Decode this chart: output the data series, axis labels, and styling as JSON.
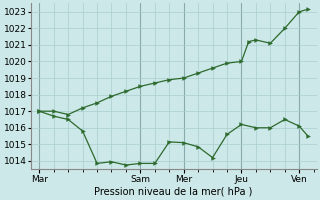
{
  "xlabel": "Pression niveau de la mer( hPa )",
  "ylim": [
    1013.5,
    1023.5
  ],
  "yticks": [
    1014,
    1015,
    1016,
    1017,
    1018,
    1019,
    1020,
    1021,
    1022,
    1023
  ],
  "day_labels": [
    "Mar",
    "Sam",
    "Mer",
    "Jeu",
    "Ven"
  ],
  "day_positions": [
    0,
    3.5,
    5.0,
    7.0,
    9.0
  ],
  "bg_color": "#cce8e8",
  "grid_color": "#aacece",
  "line_color": "#2d6a2d",
  "line1_x": [
    0,
    0.5,
    1.0,
    1.5,
    2.0,
    2.5,
    3.0,
    3.5,
    4.0,
    4.5,
    5.0,
    5.5,
    6.0,
    6.5,
    7.0,
    7.5,
    8.0,
    8.5,
    9.0,
    9.3
  ],
  "line1_y": [
    1017.0,
    1016.7,
    1016.5,
    1015.8,
    1013.85,
    1013.95,
    1013.75,
    1013.85,
    1013.85,
    1015.15,
    1015.1,
    1014.85,
    1014.2,
    1015.6,
    1016.2,
    1016.0,
    1016.0,
    1016.5,
    1016.1,
    1015.5
  ],
  "line2_x": [
    0,
    0.5,
    1.0,
    1.5,
    2.0,
    2.5,
    3.0,
    3.5,
    4.0,
    4.5,
    5.0,
    5.5,
    6.0,
    6.5,
    7.0,
    7.25,
    7.5,
    8.0,
    8.5,
    9.0,
    9.3
  ],
  "line2_y": [
    1017.0,
    1017.0,
    1016.8,
    1017.2,
    1017.5,
    1017.9,
    1018.2,
    1018.5,
    1018.7,
    1018.9,
    1019.0,
    1019.3,
    1019.6,
    1019.9,
    1020.0,
    1021.2,
    1021.3,
    1021.1,
    1022.0,
    1023.0,
    1023.15
  ]
}
